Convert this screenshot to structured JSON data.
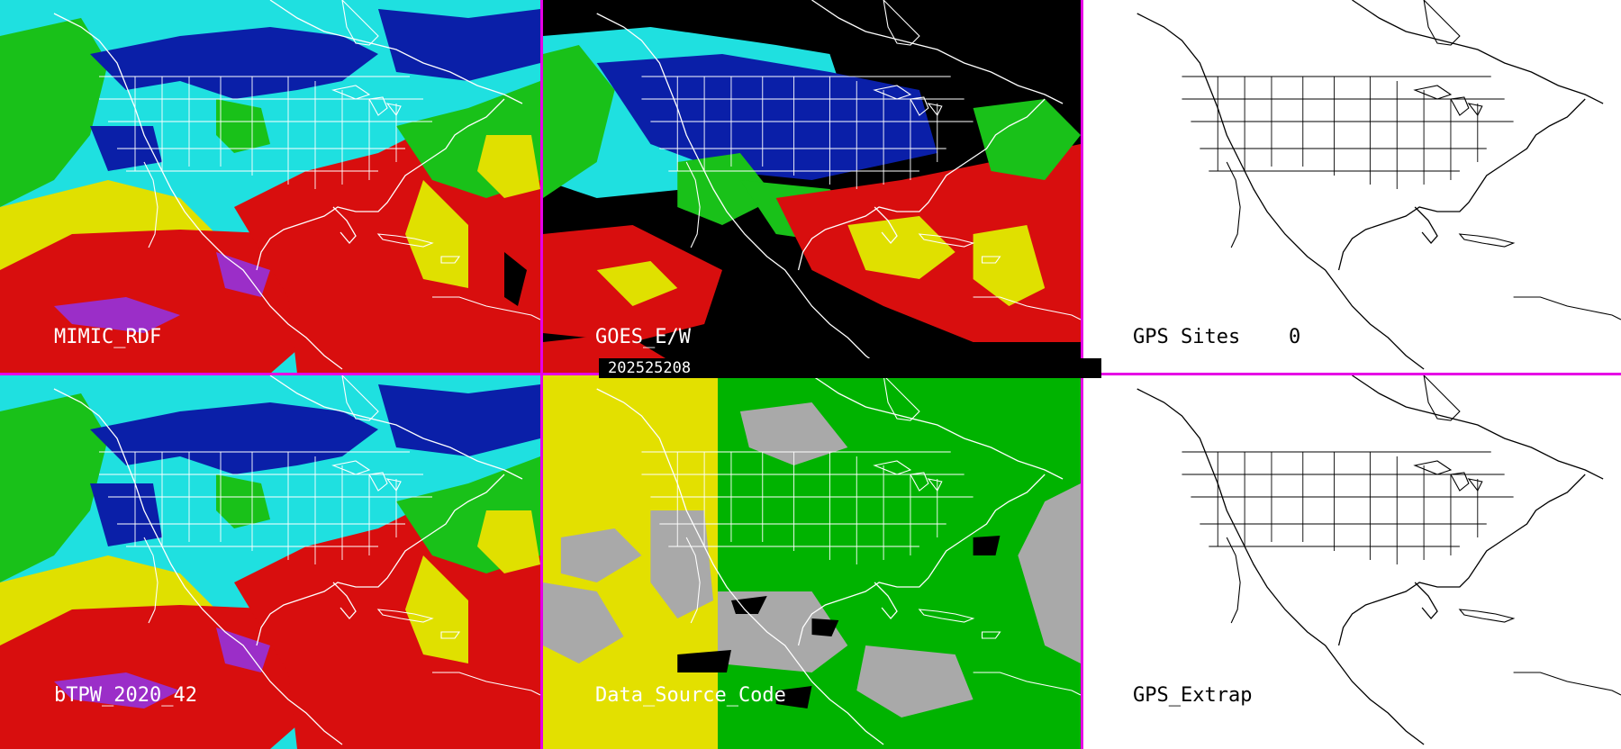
{
  "panels": {
    "mimic": {
      "label": "MIMIC_RDF"
    },
    "goes": {
      "label": "GOES_E/W"
    },
    "gps_sites": {
      "label": "GPS Sites",
      "count": "0"
    },
    "btpw": {
      "label": "bTPW_2020_42"
    },
    "data_source": {
      "label": "Data_Source_Code"
    },
    "gps_extrap": {
      "label": "GPS_Extrap"
    }
  },
  "date_stamp": "202525208",
  "colors": {
    "divider": "#e600e6",
    "very_dry": "#0a1fa8",
    "dry": "#1fe0e0",
    "moderate": "#19c119",
    "moist": "#e0e000",
    "wet": "#d80e0e",
    "very_wet": "#9b2ec8",
    "no_data": "#000000",
    "source_yellow": "#e3e000",
    "source_green": "#00b300",
    "source_gray": "#a9a9a9"
  }
}
